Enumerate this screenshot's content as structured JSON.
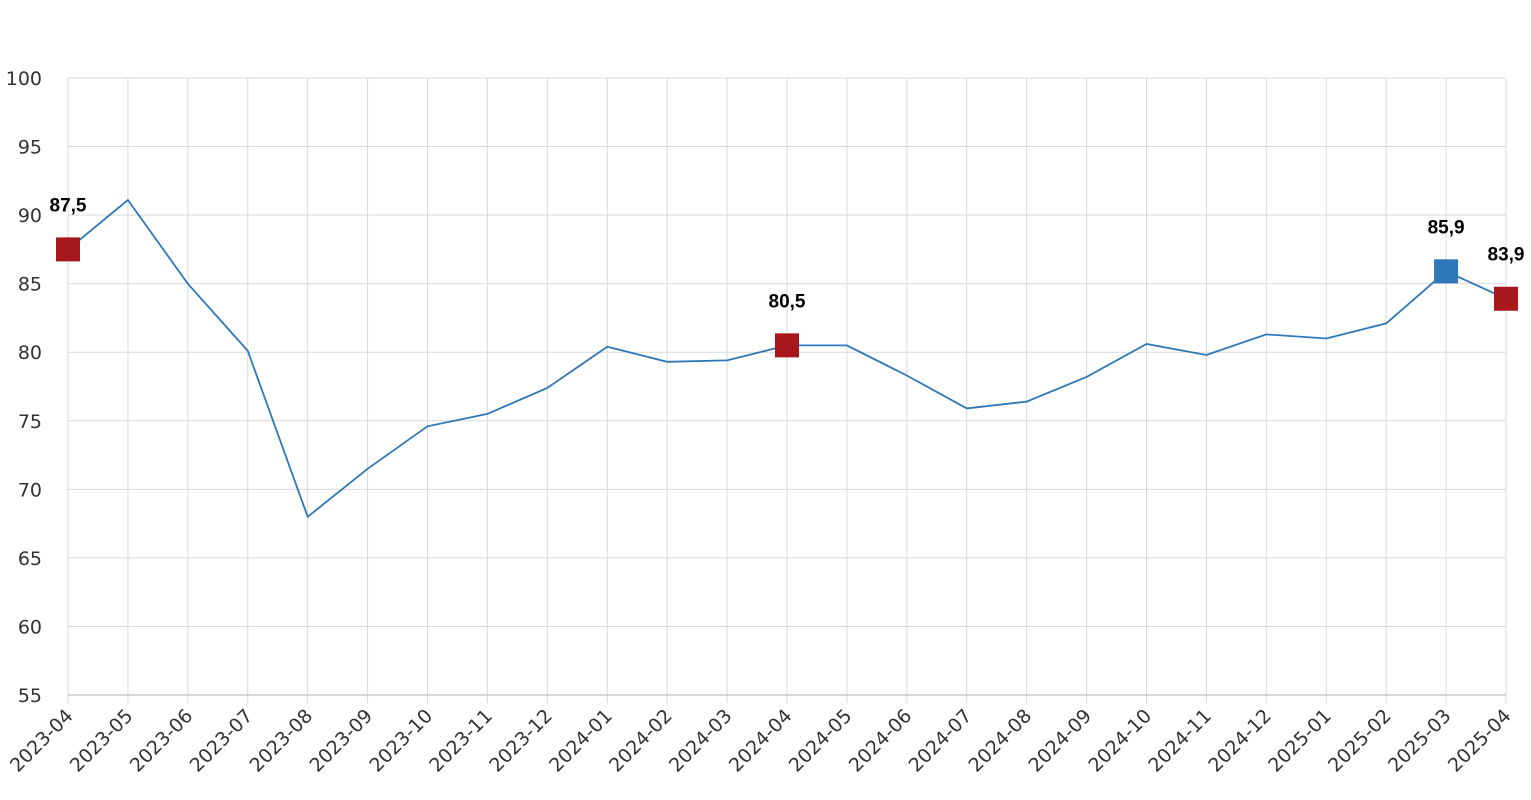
{
  "chart_data": {
    "type": "line",
    "title": "",
    "xlabel": "",
    "ylabel": "",
    "ylim": [
      55,
      100
    ],
    "y_ticks": [
      "55",
      "60",
      "65",
      "70",
      "75",
      "80",
      "85",
      "90",
      "95",
      "100"
    ],
    "grid": true,
    "x": [
      "2023-04",
      "2023-05",
      "2023-06",
      "2023-07",
      "2023-08",
      "2023-09",
      "2023-10",
      "2023-11",
      "2023-12",
      "2024-01",
      "2024-02",
      "2024-03",
      "2024-04",
      "2024-05",
      "2024-06",
      "2024-07",
      "2024-08",
      "2024-09",
      "2024-10",
      "2024-11",
      "2024-12",
      "2025-01",
      "2025-02",
      "2025-03",
      "2025-04"
    ],
    "series": [
      {
        "values": [
          87.5,
          91.1,
          85.0,
          80.1,
          68.0,
          71.5,
          74.6,
          75.5,
          77.4,
          80.4,
          79.3,
          79.4,
          80.5,
          80.5,
          78.3,
          75.9,
          76.4,
          78.2,
          80.6,
          79.8,
          81.3,
          81.0,
          82.1,
          85.9,
          83.9
        ],
        "color": "#2e78b7"
      }
    ],
    "highlights": [
      {
        "index": 0,
        "label": "87,5",
        "color": "#a8171c"
      },
      {
        "index": 12,
        "label": "80,5",
        "color": "#a8171c"
      },
      {
        "index": 23,
        "label": "85,9",
        "color": "#2e78b7"
      },
      {
        "index": 24,
        "label": "83,9",
        "color": "#a8171c"
      }
    ]
  }
}
